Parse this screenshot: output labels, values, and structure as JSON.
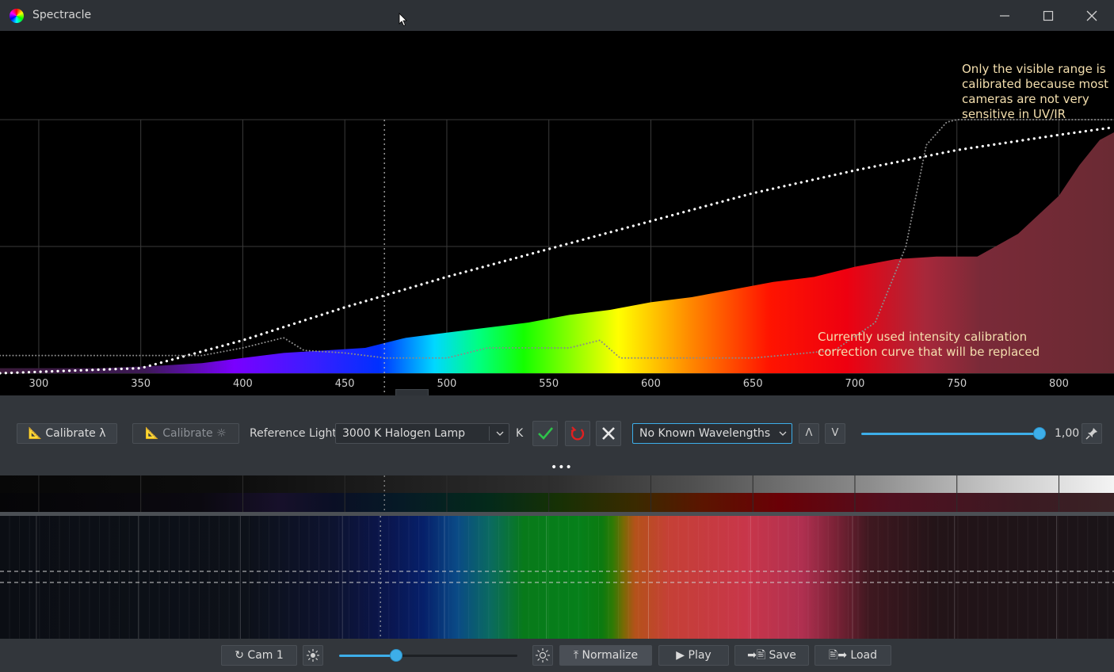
{
  "window": {
    "title": "Spectracle"
  },
  "icons": {
    "app": "spectrum-rainbow-icon",
    "minimize": "minimize-icon",
    "maximize": "maximize-icon",
    "close": "close-icon",
    "pin": "pin-icon",
    "brightness": "sun-icon"
  },
  "colors": {
    "accent": "#3daee9",
    "annotation": "#f4dfae",
    "accept": "#2ec24a",
    "reset": "#e02020"
  },
  "chart_data": {
    "type": "area",
    "x_ticks": [
      300,
      350,
      400,
      450,
      500,
      550,
      600,
      650,
      700,
      750,
      800
    ],
    "xlim": [
      281,
      827
    ],
    "ylim": [
      0,
      1
    ],
    "grid": true,
    "cursor_wavelength": "469.4",
    "series": [
      {
        "x": [
          281,
          300,
          330,
          360,
          380,
          400,
          420,
          440,
          460,
          480,
          500,
          520,
          540,
          560,
          580,
          600,
          620,
          640,
          660,
          680,
          700,
          720,
          740,
          760,
          780,
          800,
          810,
          820,
          827
        ],
        "y": [
          0.02,
          0.02,
          0.02,
          0.03,
          0.04,
          0.06,
          0.08,
          0.09,
          0.1,
          0.14,
          0.16,
          0.18,
          0.2,
          0.23,
          0.25,
          0.28,
          0.3,
          0.33,
          0.36,
          0.38,
          0.42,
          0.45,
          0.46,
          0.46,
          0.55,
          0.7,
          0.82,
          0.92,
          0.95
        ]
      },
      {
        "x": [
          281,
          350,
          400,
          450,
          500,
          550,
          600,
          650,
          700,
          750,
          800,
          827
        ],
        "y": [
          0.0,
          0.02,
          0.13,
          0.26,
          0.38,
          0.49,
          0.6,
          0.71,
          0.8,
          0.88,
          0.94,
          0.97
        ]
      },
      {
        "x": [
          281,
          300,
          350,
          380,
          400,
          420,
          430,
          450,
          470,
          500,
          520,
          540,
          560,
          575,
          585,
          600,
          650,
          690,
          710,
          725,
          735,
          745,
          750,
          800,
          827
        ],
        "y": [
          0.07,
          0.07,
          0.07,
          0.07,
          0.1,
          0.14,
          0.09,
          0.08,
          0.06,
          0.06,
          0.1,
          0.1,
          0.1,
          0.13,
          0.06,
          0.06,
          0.06,
          0.09,
          0.2,
          0.5,
          0.9,
          0.99,
          1.0,
          1.0,
          1.0
        ]
      }
    ]
  },
  "annotations": {
    "top_right": "Only the visible range is calibrated because most cameras are not very sensitive in UV/IR",
    "bottom_right": "Currently used intensity calibration correction curve that will be replaced"
  },
  "controls": {
    "calibrate_wavelength": "📐 Calibrate λ",
    "calibrate_intensity": "📐 Calibrate ☼",
    "reference_light_label": "Reference Light",
    "reference_light_value": "3000 K Halogen Lamp",
    "kelvin_unit": "K",
    "known_wavelengths_value": "No Known Wavelengths",
    "prev_label": "Λ",
    "next_label": "V",
    "gain_value": "1,00",
    "gain_level": 1.0,
    "more": "•••"
  },
  "bottom": {
    "camera_button": "↻ Cam 1",
    "exposure_level": 0.32,
    "normalize": "⤒ Normalize",
    "play": "▶ Play",
    "save": "➡🖹 Save",
    "load": "🖹➡ Load"
  }
}
